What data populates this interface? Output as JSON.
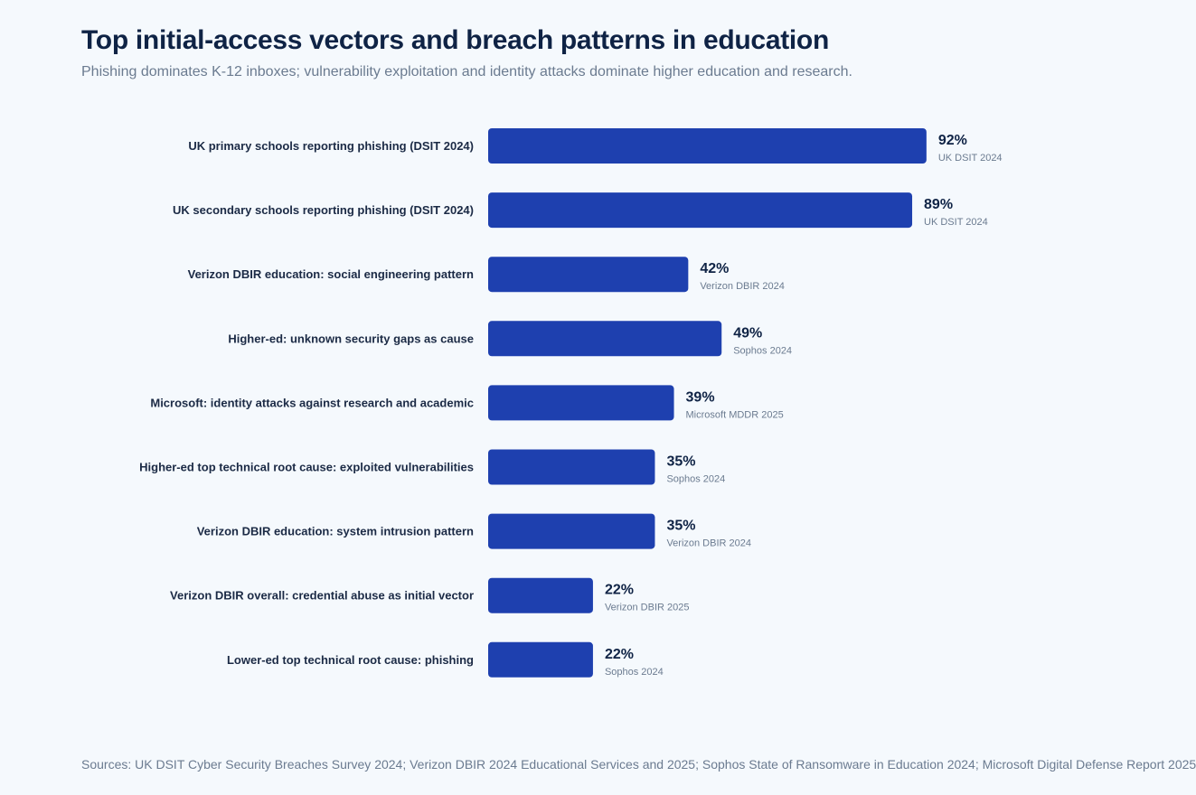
{
  "header": {
    "title": "Top initial-access vectors and breach patterns in education",
    "subtitle": "Phishing dominates K-12 inboxes; vulnerability exploitation and identity attacks dominate higher education and research."
  },
  "footer": {
    "sources": "Sources: UK DSIT Cyber Security Breaches Survey 2024; Verizon DBIR 2024 Educational Services and 2025; Sophos State of Ransomware in Education 2024; Microsoft Digital Defense Report 2025"
  },
  "colors": {
    "bar": "#1e40af",
    "background": "#f5f9fd"
  },
  "chart_data": {
    "type": "bar",
    "orientation": "horizontal",
    "title": "Top initial-access vectors and breach patterns in education",
    "xlim": [
      0,
      100
    ],
    "grid": false,
    "categories": [
      "UK primary schools reporting phishing (DSIT 2024)",
      "UK secondary schools reporting phishing (DSIT 2024)",
      "Verizon DBIR education: social engineering pattern",
      "Higher-ed: unknown security gaps as cause",
      "Microsoft: identity attacks against research and academic",
      "Higher-ed top technical root cause: exploited vulnerabilities",
      "Verizon DBIR education: system intrusion pattern",
      "Verizon DBIR overall: credential abuse as initial vector",
      "Lower-ed top technical root cause: phishing"
    ],
    "values": [
      92,
      89,
      42,
      49,
      39,
      35,
      35,
      22,
      22
    ],
    "value_labels": [
      "92%",
      "89%",
      "42%",
      "49%",
      "39%",
      "35%",
      "35%",
      "22%",
      "22%"
    ],
    "sources": [
      "UK DSIT 2024",
      "UK DSIT 2024",
      "Verizon DBIR 2024",
      "Sophos 2024",
      "Microsoft MDDR 2025",
      "Sophos 2024",
      "Verizon DBIR 2024",
      "Verizon DBIR 2025",
      "Sophos 2024"
    ]
  }
}
